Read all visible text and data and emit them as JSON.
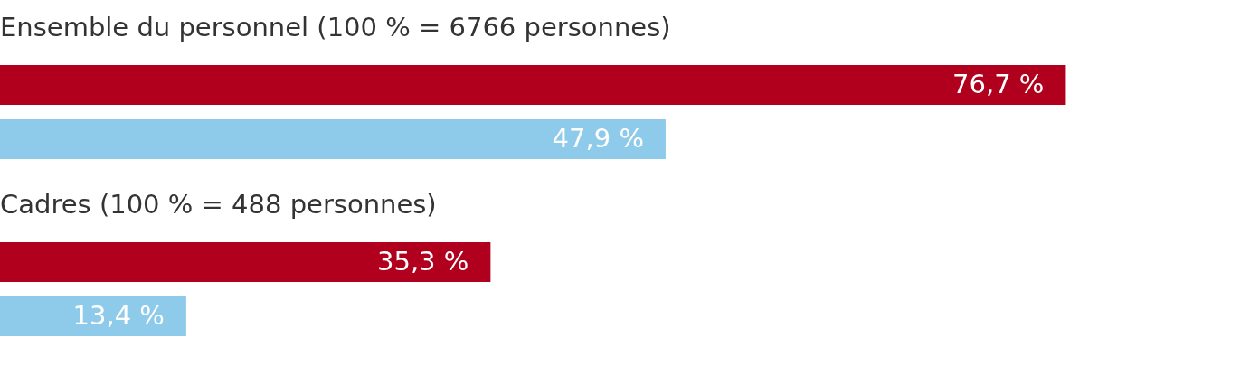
{
  "chart_data": [
    {
      "type": "bar",
      "orientation": "horizontal",
      "title": "Ensemble du personnel (100 % = 6766 personnes)",
      "categories": [
        null,
        null
      ],
      "values": [
        76.7,
        47.9
      ],
      "colors": [
        "#b0001e",
        "#8ecae9"
      ],
      "value_labels": [
        "76,7 %",
        "47,9 %"
      ],
      "xlim": [
        0,
        90.6
      ]
    },
    {
      "type": "bar",
      "orientation": "horizontal",
      "title": "Cadres (100 % = 488 personnes)",
      "categories": [
        null,
        null
      ],
      "values": [
        35.3,
        13.4
      ],
      "colors": [
        "#b0001e",
        "#8ecae9"
      ],
      "value_labels": [
        "35,3 %",
        "13,4 %"
      ],
      "xlim": [
        0,
        90.6
      ]
    }
  ]
}
